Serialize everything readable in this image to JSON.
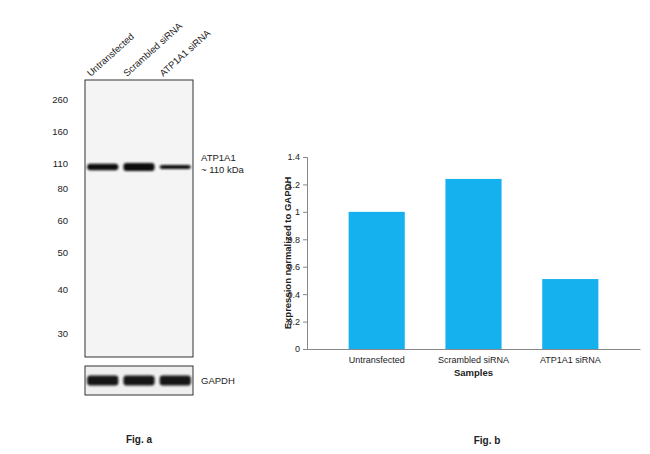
{
  "chart_data": {
    "type": "bar",
    "categories": [
      "Untransfected",
      "Scrambled siRNA",
      "ATP1A1 siRNA"
    ],
    "values": [
      1,
      1.24,
      0.51
    ],
    "color": "#14b1ee",
    "ylim": [
      0,
      1.4
    ],
    "yticks": [
      0,
      0.2,
      0.4,
      0.6,
      0.8,
      1,
      1.2,
      1.4
    ],
    "x_label": "Samples",
    "y_label": "Expression normalized to GAPDH",
    "grid": false,
    "caption": "Fig. b"
  },
  "blot": {
    "lanes": [
      "Untransfected",
      "Scrambled siRNA",
      "ATP1A1 siRNA"
    ],
    "markers_kda": [
      260,
      160,
      110,
      80,
      60,
      50,
      40,
      30
    ],
    "target": {
      "name": "ATP1A1",
      "size_label": "~ 110 kDa",
      "kda": 110
    },
    "loading_control": "GAPDH",
    "caption": "Fig. a"
  }
}
